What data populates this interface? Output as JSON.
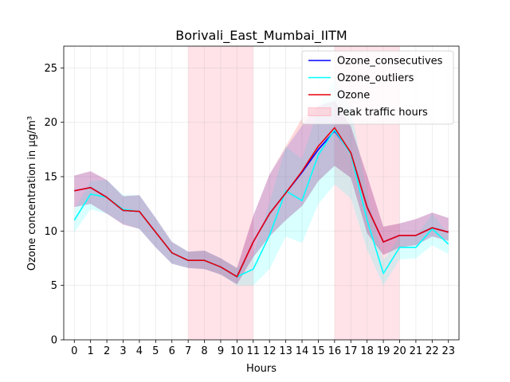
{
  "chart_data": {
    "type": "line",
    "title": "Borivali_East_Mumbai_IITM",
    "xlabel": "Hours",
    "ylabel": "Ozone concentration in µg/m³",
    "x": [
      0,
      1,
      2,
      3,
      4,
      5,
      6,
      7,
      8,
      9,
      10,
      11,
      12,
      13,
      14,
      15,
      16,
      17,
      18,
      19,
      20,
      21,
      22,
      23
    ],
    "x_ticks": [
      "0",
      "1",
      "2",
      "3",
      "4",
      "5",
      "6",
      "7",
      "8",
      "9",
      "10",
      "11",
      "12",
      "13",
      "14",
      "15",
      "16",
      "17",
      "18",
      "19",
      "20",
      "21",
      "22",
      "23"
    ],
    "xlim": [
      -0.65,
      23.65
    ],
    "ylim": [
      0,
      27
    ],
    "y_ticks": [
      0,
      5,
      10,
      15,
      20,
      25
    ],
    "grid": true,
    "legend_position": "top-right",
    "peak_traffic_hours": [
      [
        7,
        11
      ],
      [
        16,
        20
      ]
    ],
    "series": [
      {
        "name": "Ozone_consecutives",
        "color": "#0000ff",
        "values": [
          13.7,
          14.0,
          13.1,
          11.9,
          11.8,
          9.9,
          8.0,
          7.3,
          7.3,
          6.7,
          5.8,
          9.0,
          11.6,
          13.5,
          15.4,
          17.5,
          19.2,
          17.2,
          12.2,
          9.0,
          9.6,
          9.6,
          10.3,
          9.9
        ],
        "band_low": [
          12.2,
          12.5,
          11.6,
          10.6,
          10.2,
          8.5,
          7.0,
          6.6,
          6.5,
          6.0,
          5.1,
          7.6,
          9.5,
          11.0,
          12.3,
          14.6,
          16.0,
          14.9,
          9.8,
          7.8,
          8.5,
          8.7,
          9.5,
          9.1
        ],
        "band_high": [
          15.1,
          15.5,
          14.7,
          13.2,
          13.3,
          11.2,
          9.0,
          8.1,
          8.2,
          7.5,
          6.6,
          11.4,
          15.2,
          17.6,
          19.7,
          21.5,
          22.0,
          19.6,
          15.1,
          10.4,
          10.7,
          11.1,
          11.7,
          11.2
        ]
      },
      {
        "name": "Ozone_outliers",
        "color": "#00ffff",
        "values": [
          11.0,
          13.4,
          13.1,
          12.0,
          11.8,
          9.9,
          8.0,
          7.3,
          7.3,
          6.7,
          5.8,
          6.5,
          9.6,
          13.7,
          12.8,
          17.0,
          19.3,
          17.1,
          11.0,
          6.1,
          8.5,
          8.5,
          10.2,
          8.8
        ],
        "band_low": [
          9.9,
          12.0,
          11.6,
          10.7,
          10.2,
          8.5,
          7.0,
          6.6,
          6.5,
          6.0,
          5.0,
          5.0,
          6.5,
          9.5,
          8.9,
          12.5,
          14.3,
          13.0,
          8.3,
          5.0,
          7.4,
          7.5,
          8.7,
          7.9
        ],
        "band_high": [
          12.0,
          14.6,
          14.7,
          13.3,
          13.3,
          11.2,
          9.0,
          8.1,
          8.2,
          7.5,
          6.6,
          7.8,
          12.6,
          17.8,
          16.6,
          21.3,
          24.0,
          21.3,
          13.5,
          7.3,
          9.5,
          9.5,
          11.6,
          9.7
        ]
      },
      {
        "name": "Ozone",
        "color": "#e8000b",
        "values": [
          13.7,
          14.0,
          13.1,
          11.9,
          11.8,
          9.9,
          8.0,
          7.3,
          7.3,
          6.7,
          5.8,
          9.0,
          11.6,
          13.5,
          15.5,
          17.8,
          19.5,
          17.2,
          12.2,
          9.0,
          9.6,
          9.6,
          10.3,
          9.9
        ],
        "band_low": [
          12.2,
          12.5,
          11.6,
          10.6,
          10.2,
          8.5,
          7.0,
          6.6,
          6.5,
          6.0,
          5.1,
          7.6,
          9.5,
          11.0,
          12.3,
          14.6,
          16.0,
          14.9,
          9.8,
          7.8,
          8.5,
          8.7,
          9.5,
          9.1
        ],
        "band_high": [
          15.1,
          15.5,
          14.7,
          13.2,
          13.3,
          11.2,
          9.0,
          8.1,
          8.2,
          7.5,
          6.6,
          11.4,
          15.2,
          17.8,
          20.4,
          21.5,
          22.0,
          19.6,
          15.1,
          10.4,
          10.7,
          11.1,
          11.7,
          11.2
        ]
      }
    ],
    "legend": [
      {
        "label": "Ozone_consecutives",
        "kind": "line",
        "color": "#0000ff"
      },
      {
        "label": "Ozone_outliers",
        "kind": "line",
        "color": "#00ffff"
      },
      {
        "label": "Ozone",
        "kind": "line",
        "color": "#e8000b"
      },
      {
        "label": "Peak traffic hours",
        "kind": "patch",
        "color": "#ffc0cb"
      }
    ]
  }
}
